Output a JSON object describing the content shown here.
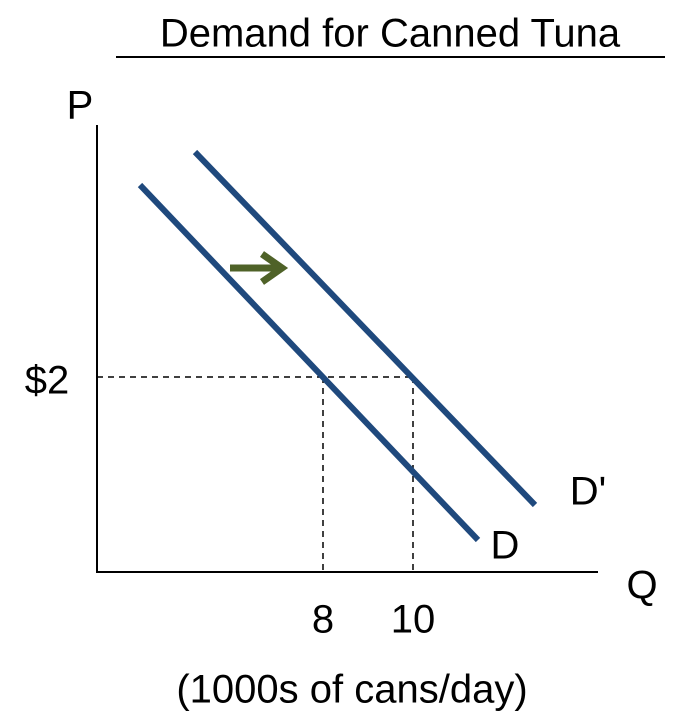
{
  "title": "Demand for Canned Tuna",
  "axes": {
    "y_label": "P",
    "x_label": "Q",
    "x_unit": "(1000s of cans/day)"
  },
  "ticks": {
    "price": "$2",
    "quantities": [
      "8",
      "10"
    ]
  },
  "curves": [
    {
      "label": "D"
    },
    {
      "label": "D'"
    }
  ]
}
